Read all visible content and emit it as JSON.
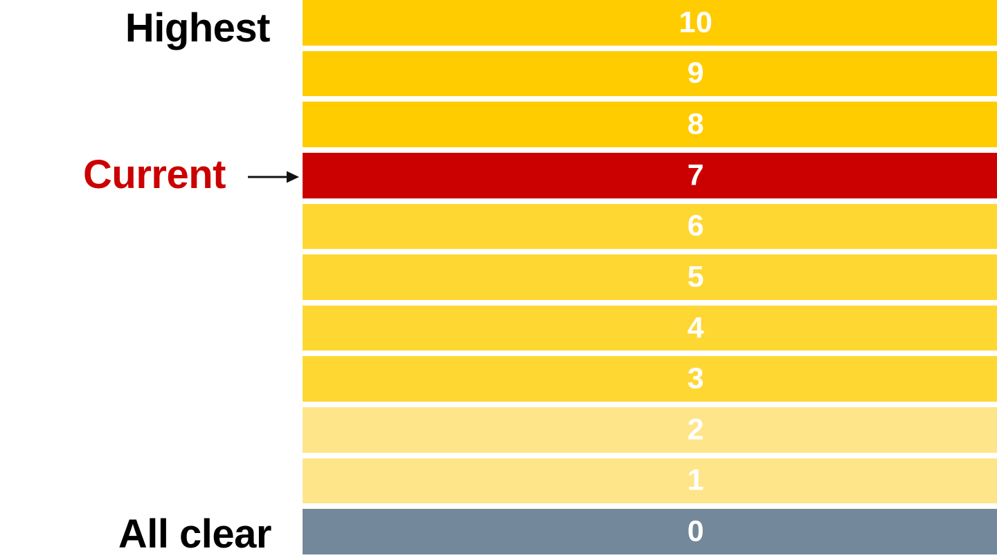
{
  "chart_data": {
    "type": "bar",
    "title": "",
    "description_of_visual": "Vertical stack of 11 horizontal level bars numbered 10 (top) to 0 (bottom); level 7 highlighted red as current, level 0 slate gray as all clear",
    "categories": [
      "10",
      "9",
      "8",
      "7",
      "6",
      "5",
      "4",
      "3",
      "2",
      "1",
      "0"
    ],
    "levels": [
      {
        "value": "10",
        "color": "#FFCC00"
      },
      {
        "value": "9",
        "color": "#FFCC00"
      },
      {
        "value": "8",
        "color": "#FFCC00"
      },
      {
        "value": "7",
        "color": "#CB0101"
      },
      {
        "value": "6",
        "color": "#FFD733"
      },
      {
        "value": "5",
        "color": "#FFD733"
      },
      {
        "value": "4",
        "color": "#FFD733"
      },
      {
        "value": "3",
        "color": "#FFD733"
      },
      {
        "value": "2",
        "color": "#FFE58A"
      },
      {
        "value": "1",
        "color": "#FFE58A"
      },
      {
        "value": "0",
        "color": "#74889B"
      }
    ],
    "annotations": [
      {
        "label": "Highest",
        "target_level": "10"
      },
      {
        "label": "Current",
        "target_level": "7"
      },
      {
        "label": "All clear",
        "target_level": "0"
      }
    ],
    "legend_position": "none",
    "grid": false
  },
  "labels": {
    "highest": "Highest",
    "current": "Current",
    "all_clear": "All clear"
  },
  "colors": {
    "gold": "#FFCC00",
    "yellow": "#FFD733",
    "pale_yellow": "#FFE58A",
    "red": "#CB0101",
    "slate": "#74889B",
    "label_black": "#000000",
    "number_white": "#FFFFFF",
    "arrow_black": "#111111"
  },
  "icons": {
    "current_arrow": "arrow-right-icon"
  }
}
